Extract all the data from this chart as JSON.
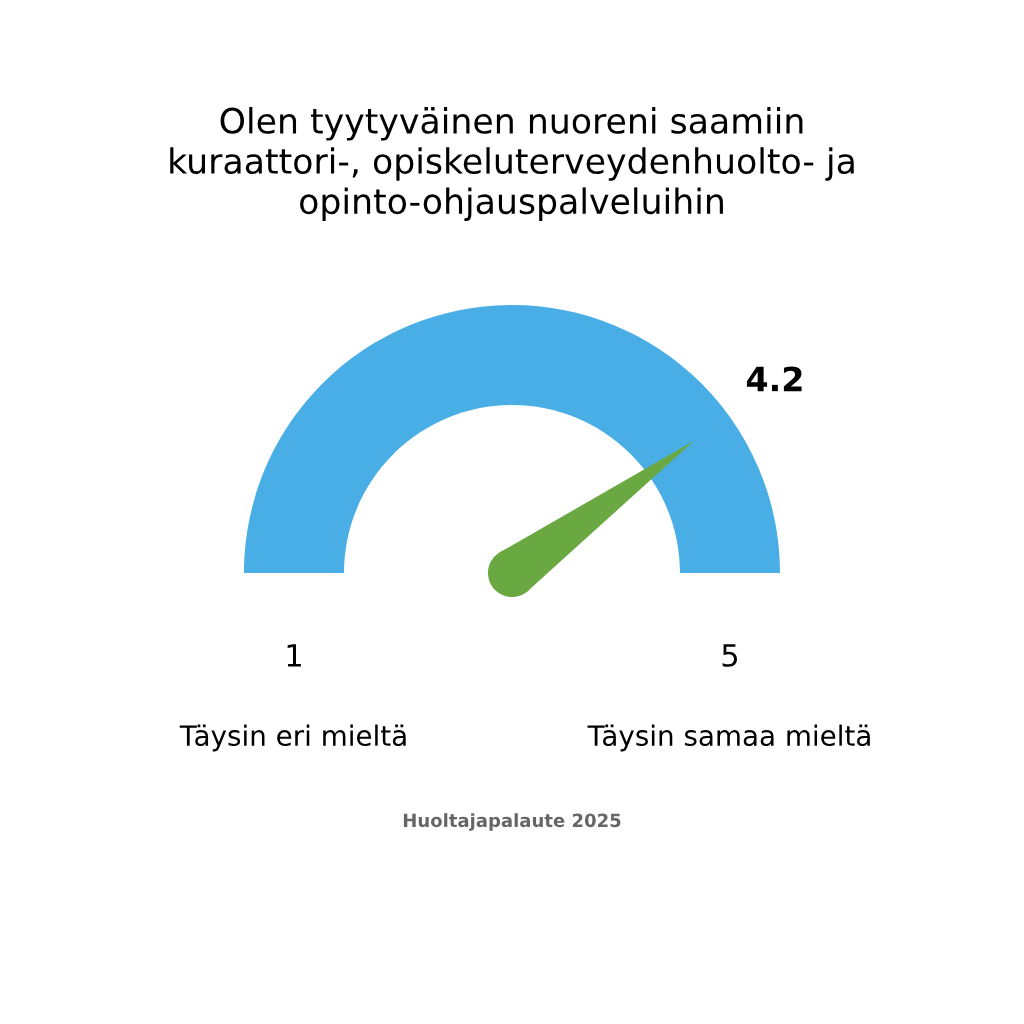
{
  "chart_data": {
    "type": "other",
    "title": "Olen tyytyväinen nuoreni saamiin\nkuraattori-, opiskeluterveydenhuolto- ja\nopinto-ohjauspalveluihin",
    "color": "#4aaee6",
    "series": [
      {
        "color": "#6aa842",
        "values": [
          4.2
        ]
      }
    ],
    "data_labels": true,
    "annotations": [
      "1",
      "5",
      "Täysin eri mieltä",
      "Täysin samaa mieltä",
      "Huoltajapalaute 2025"
    ]
  }
}
